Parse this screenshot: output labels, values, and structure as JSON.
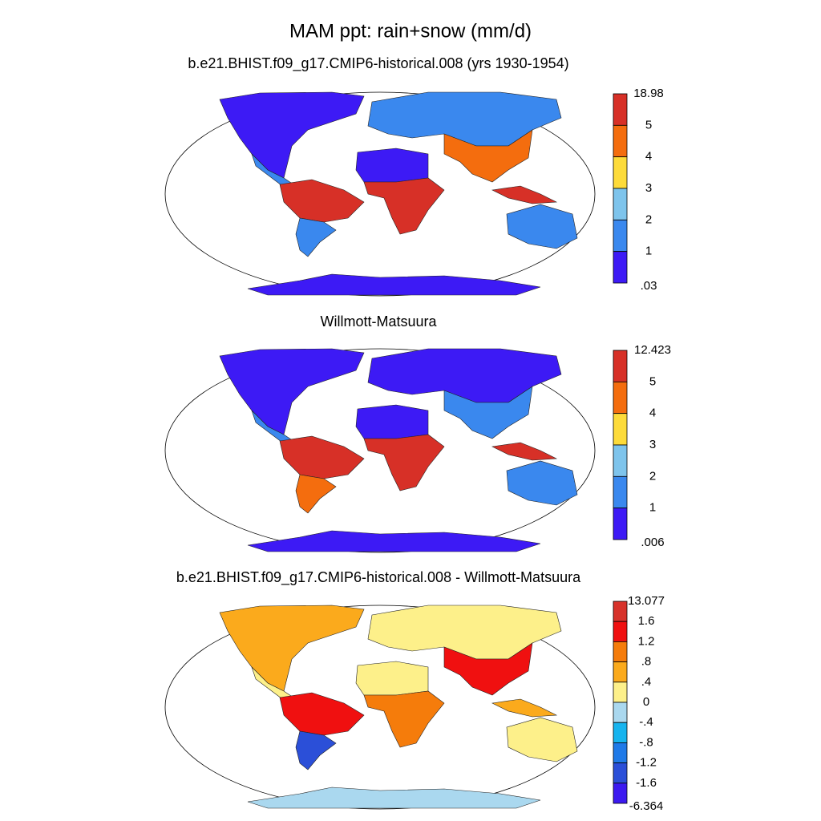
{
  "title": "MAM ppt: rain+snow (mm/d)",
  "panels": [
    {
      "subtitle": "b.e21.BHIST.f09_g17.CMIP6-historical.008 (yrs 1930-1954)",
      "colorbar": {
        "labels": [
          "18.98",
          "5",
          "4",
          "3",
          "2",
          "1",
          ".03"
        ],
        "colors": [
          "#d73027",
          "#f46d0e",
          "#fddb3a",
          "#7ec4ec",
          "#3a88ee",
          "#3d1af5"
        ]
      }
    },
    {
      "subtitle": "Willmott-Matsuura",
      "colorbar": {
        "labels": [
          "12.423",
          "5",
          "4",
          "3",
          "2",
          "1",
          ".006"
        ],
        "colors": [
          "#d73027",
          "#f46d0e",
          "#fddb3a",
          "#7ec4ec",
          "#3a88ee",
          "#3d1af5"
        ]
      }
    },
    {
      "subtitle": "b.e21.BHIST.f09_g17.CMIP6-historical.008 - Willmott-Matsuura",
      "colorbar": {
        "labels": [
          "13.077",
          "1.6",
          "1.2",
          ".8",
          ".4",
          "0",
          "-.4",
          "-.8",
          "-1.2",
          "-1.6",
          "-6.364"
        ],
        "colors": [
          "#d7322a",
          "#f01010",
          "#f57c0b",
          "#fbaa1c",
          "#fdf08a",
          "#aad8ef",
          "#16b4ef",
          "#1f7ae8",
          "#2b4fd8",
          "#3c1af0"
        ]
      }
    }
  ]
}
